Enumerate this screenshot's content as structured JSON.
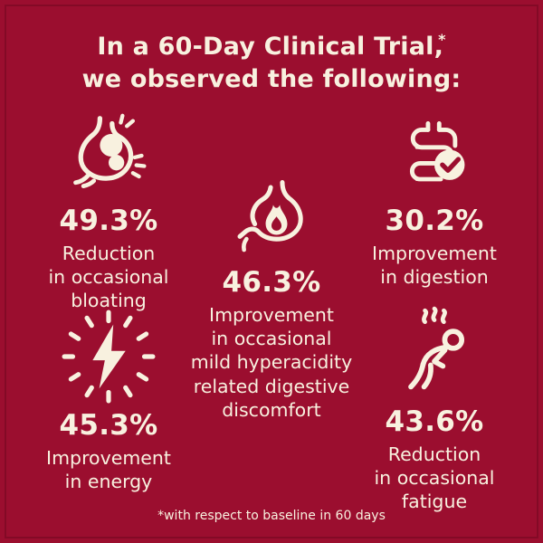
{
  "colors": {
    "background": "#9B0E2F",
    "text_cream": "#F8F1DF",
    "frame_line": "#6E0820"
  },
  "title": {
    "line1": "In a 60-Day Clinical Trial,",
    "asterisk": "*",
    "line2": "we observed the following:"
  },
  "stats": [
    {
      "id": "bloating",
      "icon": "stomach-bloating-icon",
      "value": "49.3%",
      "label": "Reduction in occasional bloating",
      "label_lines": [
        "Reduction",
        "in occasional",
        "bloating"
      ]
    },
    {
      "id": "digestion",
      "icon": "intestine-check-icon",
      "value": "30.2%",
      "label": "Improvement in digestion",
      "label_lines": [
        "Improvement",
        "in digestion"
      ]
    },
    {
      "id": "hyperacidity",
      "icon": "stomach-flame-icon",
      "value": "46.3%",
      "label": "Improvement in occasional mild hyperacidity related digestive discomfort",
      "label_lines": [
        "Improvement",
        "in occasional",
        "mild hyperacidity",
        "related digestive",
        "discomfort"
      ]
    },
    {
      "id": "energy",
      "icon": "energy-bolt-icon",
      "value": "45.3%",
      "label": "Improvement in energy",
      "label_lines": [
        "Improvement",
        "in energy"
      ]
    },
    {
      "id": "fatigue",
      "icon": "fatigue-person-icon",
      "value": "43.6%",
      "label": "Reduction in occasional fatigue",
      "label_lines": [
        "Reduction",
        "in occasional",
        "fatigue"
      ]
    }
  ],
  "footnote": "*with respect to baseline in 60 days"
}
